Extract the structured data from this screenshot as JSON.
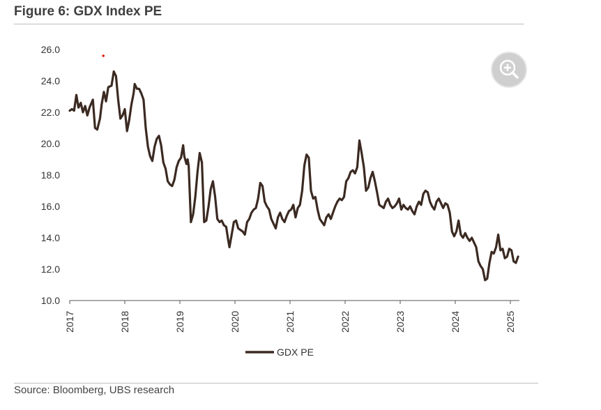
{
  "figure": {
    "title": "Figure 6: GDX Index PE",
    "source": "Source: Bloomberg, UBS research"
  },
  "controls": {
    "zoom_icon": "zoom-in-icon"
  },
  "colors": {
    "series": "#3b2a22",
    "marker": "#e02010",
    "axis": "#555555",
    "rule": "#bfbfbf"
  },
  "chart_data": {
    "type": "line",
    "ylim": [
      10,
      26
    ],
    "y_ticks": [
      "26.0",
      "24.0",
      "22.0",
      "20.0",
      "18.0",
      "16.0",
      "14.0",
      "12.0",
      "10.0"
    ],
    "y_tick_values": [
      26,
      24,
      22,
      20,
      18,
      16,
      14,
      12,
      10
    ],
    "x_ticks": [
      "2017",
      "2018",
      "2019",
      "2020",
      "2021",
      "2022",
      "2023",
      "2024",
      "2025"
    ],
    "x_tick_values": [
      2017,
      2018,
      2019,
      2020,
      2021,
      2022,
      2023,
      2024,
      2025
    ],
    "xlim": [
      2017,
      2025.15
    ],
    "grid": false,
    "legend": "bottom-center",
    "series": [
      {
        "name": "GDX PE",
        "points": [
          [
            2017.0,
            22.1
          ],
          [
            2017.04,
            22.2
          ],
          [
            2017.08,
            22.1
          ],
          [
            2017.12,
            23.1
          ],
          [
            2017.16,
            22.3
          ],
          [
            2017.2,
            22.6
          ],
          [
            2017.24,
            22.0
          ],
          [
            2017.28,
            22.4
          ],
          [
            2017.32,
            21.8
          ],
          [
            2017.36,
            22.3
          ],
          [
            2017.42,
            22.8
          ],
          [
            2017.46,
            21.0
          ],
          [
            2017.5,
            20.9
          ],
          [
            2017.55,
            21.6
          ],
          [
            2017.58,
            22.5
          ],
          [
            2017.62,
            23.3
          ],
          [
            2017.66,
            22.7
          ],
          [
            2017.7,
            23.6
          ],
          [
            2017.76,
            23.7
          ],
          [
            2017.8,
            24.6
          ],
          [
            2017.84,
            24.3
          ],
          [
            2017.88,
            22.8
          ],
          [
            2017.92,
            21.6
          ],
          [
            2017.96,
            21.8
          ],
          [
            2018.0,
            22.2
          ],
          [
            2018.04,
            20.8
          ],
          [
            2018.08,
            21.5
          ],
          [
            2018.12,
            22.5
          ],
          [
            2018.16,
            23.2
          ],
          [
            2018.18,
            23.8
          ],
          [
            2018.22,
            23.5
          ],
          [
            2018.26,
            23.5
          ],
          [
            2018.3,
            23.2
          ],
          [
            2018.34,
            22.8
          ],
          [
            2018.38,
            21.0
          ],
          [
            2018.42,
            19.8
          ],
          [
            2018.46,
            19.2
          ],
          [
            2018.5,
            18.9
          ],
          [
            2018.54,
            19.8
          ],
          [
            2018.58,
            20.3
          ],
          [
            2018.62,
            20.5
          ],
          [
            2018.66,
            19.9
          ],
          [
            2018.7,
            18.8
          ],
          [
            2018.74,
            18.4
          ],
          [
            2018.78,
            17.6
          ],
          [
            2018.82,
            17.4
          ],
          [
            2018.86,
            17.3
          ],
          [
            2018.9,
            17.7
          ],
          [
            2018.94,
            18.5
          ],
          [
            2018.98,
            18.9
          ],
          [
            2019.02,
            19.1
          ],
          [
            2019.06,
            19.9
          ],
          [
            2019.08,
            19.2
          ],
          [
            2019.12,
            18.7
          ],
          [
            2019.14,
            19.0
          ],
          [
            2019.16,
            18.6
          ],
          [
            2019.2,
            15.0
          ],
          [
            2019.24,
            15.5
          ],
          [
            2019.28,
            16.6
          ],
          [
            2019.32,
            18.2
          ],
          [
            2019.36,
            19.4
          ],
          [
            2019.4,
            18.8
          ],
          [
            2019.44,
            15.0
          ],
          [
            2019.48,
            15.1
          ],
          [
            2019.52,
            16.0
          ],
          [
            2019.56,
            17.1
          ],
          [
            2019.6,
            17.6
          ],
          [
            2019.64,
            16.6
          ],
          [
            2019.68,
            15.2
          ],
          [
            2019.72,
            15.0
          ],
          [
            2019.76,
            15.1
          ],
          [
            2019.8,
            14.8
          ],
          [
            2019.84,
            14.7
          ],
          [
            2019.88,
            13.8
          ],
          [
            2019.9,
            13.4
          ],
          [
            2019.94,
            14.2
          ],
          [
            2019.98,
            15.0
          ],
          [
            2020.02,
            15.1
          ],
          [
            2020.06,
            14.6
          ],
          [
            2020.1,
            14.5
          ],
          [
            2020.14,
            14.4
          ],
          [
            2020.18,
            14.2
          ],
          [
            2020.22,
            15.0
          ],
          [
            2020.26,
            15.2
          ],
          [
            2020.3,
            15.6
          ],
          [
            2020.34,
            15.8
          ],
          [
            2020.38,
            15.9
          ],
          [
            2020.42,
            16.5
          ],
          [
            2020.46,
            17.5
          ],
          [
            2020.5,
            17.3
          ],
          [
            2020.54,
            16.3
          ],
          [
            2020.58,
            16.0
          ],
          [
            2020.62,
            15.8
          ],
          [
            2020.66,
            15.2
          ],
          [
            2020.7,
            14.9
          ],
          [
            2020.74,
            14.6
          ],
          [
            2020.78,
            15.3
          ],
          [
            2020.82,
            15.6
          ],
          [
            2020.86,
            15.2
          ],
          [
            2020.9,
            15.0
          ],
          [
            2020.94,
            15.4
          ],
          [
            2020.98,
            15.7
          ],
          [
            2021.02,
            15.8
          ],
          [
            2021.06,
            16.1
          ],
          [
            2021.1,
            15.3
          ],
          [
            2021.14,
            15.9
          ],
          [
            2021.18,
            16.1
          ],
          [
            2021.22,
            17.0
          ],
          [
            2021.26,
            18.6
          ],
          [
            2021.3,
            19.3
          ],
          [
            2021.34,
            19.1
          ],
          [
            2021.38,
            17.0
          ],
          [
            2021.42,
            16.5
          ],
          [
            2021.46,
            16.6
          ],
          [
            2021.5,
            15.8
          ],
          [
            2021.54,
            15.2
          ],
          [
            2021.58,
            15.0
          ],
          [
            2021.62,
            14.8
          ],
          [
            2021.66,
            15.3
          ],
          [
            2021.7,
            15.5
          ],
          [
            2021.74,
            15.2
          ],
          [
            2021.78,
            15.6
          ],
          [
            2021.82,
            16.0
          ],
          [
            2021.86,
            16.3
          ],
          [
            2021.9,
            16.5
          ],
          [
            2021.94,
            16.4
          ],
          [
            2021.98,
            16.6
          ],
          [
            2022.02,
            17.6
          ],
          [
            2022.06,
            17.8
          ],
          [
            2022.1,
            18.2
          ],
          [
            2022.14,
            18.3
          ],
          [
            2022.18,
            18.1
          ],
          [
            2022.22,
            18.5
          ],
          [
            2022.26,
            20.2
          ],
          [
            2022.3,
            19.4
          ],
          [
            2022.34,
            18.5
          ],
          [
            2022.38,
            17.0
          ],
          [
            2022.42,
            17.2
          ],
          [
            2022.46,
            17.8
          ],
          [
            2022.5,
            18.2
          ],
          [
            2022.54,
            17.6
          ],
          [
            2022.58,
            16.9
          ],
          [
            2022.62,
            16.1
          ],
          [
            2022.66,
            16.0
          ],
          [
            2022.7,
            15.9
          ],
          [
            2022.74,
            16.3
          ],
          [
            2022.78,
            16.5
          ],
          [
            2022.82,
            16.1
          ],
          [
            2022.86,
            15.9
          ],
          [
            2022.9,
            16.0
          ],
          [
            2022.94,
            16.2
          ],
          [
            2022.98,
            16.5
          ],
          [
            2023.02,
            15.8
          ],
          [
            2023.06,
            16.1
          ],
          [
            2023.1,
            15.9
          ],
          [
            2023.14,
            15.8
          ],
          [
            2023.18,
            16.0
          ],
          [
            2023.22,
            15.7
          ],
          [
            2023.26,
            15.5
          ],
          [
            2023.3,
            16.0
          ],
          [
            2023.34,
            16.3
          ],
          [
            2023.38,
            16.1
          ],
          [
            2023.42,
            16.8
          ],
          [
            2023.46,
            17.0
          ],
          [
            2023.5,
            16.9
          ],
          [
            2023.54,
            16.3
          ],
          [
            2023.58,
            16.0
          ],
          [
            2023.62,
            15.8
          ],
          [
            2023.66,
            16.3
          ],
          [
            2023.7,
            16.5
          ],
          [
            2023.74,
            16.2
          ],
          [
            2023.78,
            15.9
          ],
          [
            2023.82,
            16.2
          ],
          [
            2023.86,
            16.1
          ],
          [
            2023.9,
            15.6
          ],
          [
            2023.94,
            14.4
          ],
          [
            2023.98,
            14.1
          ],
          [
            2024.02,
            14.4
          ],
          [
            2024.06,
            15.1
          ],
          [
            2024.1,
            14.2
          ],
          [
            2024.14,
            14.0
          ],
          [
            2024.18,
            14.3
          ],
          [
            2024.22,
            14.0
          ],
          [
            2024.26,
            13.8
          ],
          [
            2024.3,
            14.0
          ],
          [
            2024.34,
            13.7
          ],
          [
            2024.38,
            13.4
          ],
          [
            2024.42,
            12.5
          ],
          [
            2024.46,
            12.2
          ],
          [
            2024.5,
            12.0
          ],
          [
            2024.54,
            11.3
          ],
          [
            2024.58,
            11.4
          ],
          [
            2024.62,
            12.4
          ],
          [
            2024.66,
            13.1
          ],
          [
            2024.7,
            13.0
          ],
          [
            2024.74,
            13.4
          ],
          [
            2024.78,
            14.2
          ],
          [
            2024.82,
            13.2
          ],
          [
            2024.86,
            13.3
          ],
          [
            2024.9,
            12.7
          ],
          [
            2024.94,
            12.8
          ],
          [
            2024.98,
            13.3
          ],
          [
            2025.02,
            13.2
          ],
          [
            2025.06,
            12.5
          ],
          [
            2025.1,
            12.4
          ],
          [
            2025.14,
            12.8
          ]
        ]
      }
    ],
    "annotation_marker": {
      "x": 2017.61,
      "y": 25.6
    }
  }
}
